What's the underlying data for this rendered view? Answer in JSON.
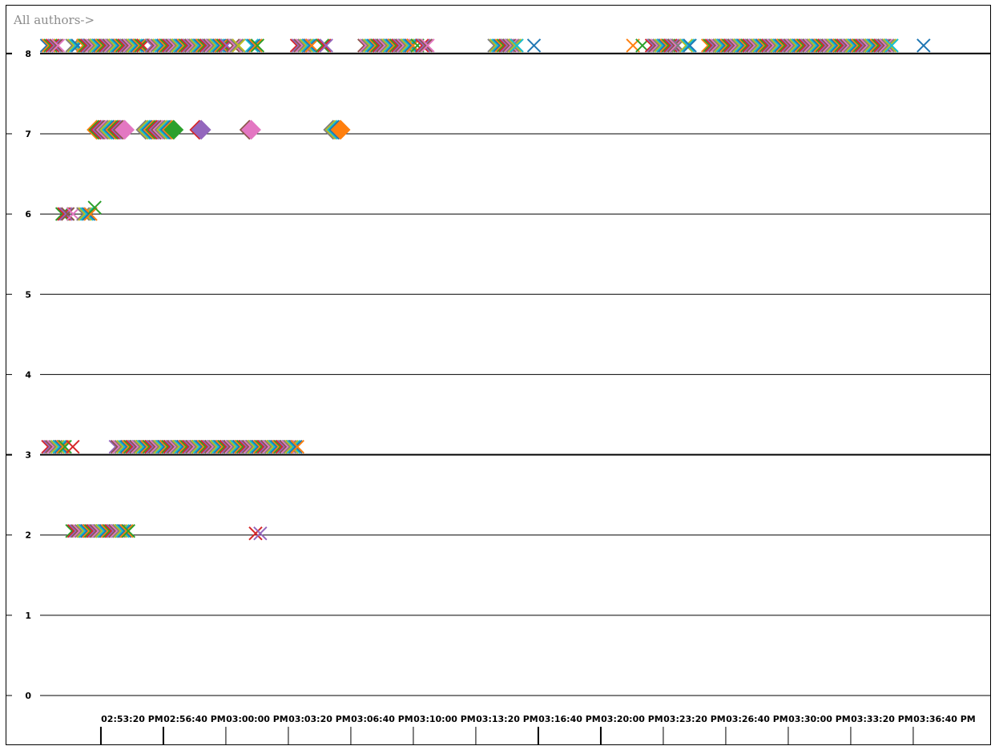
{
  "chart_data": {
    "type": "scatter",
    "title": "All authors->",
    "xlabel": "",
    "ylabel": "",
    "ylim": [
      0,
      8
    ],
    "yticks": [
      0,
      1,
      2,
      3,
      4,
      5,
      6,
      7,
      8
    ],
    "emphasized_y_gridlines": [
      3,
      8
    ],
    "grid": true,
    "x_axis_type": "time",
    "xlim": [
      "02:51:44 PM",
      "03:40:47 PM"
    ],
    "xtick_labels": [
      "02:53:20 PM",
      "02:56:40 PM",
      "03:00:00 PM",
      "03:03:20 PM",
      "03:06:40 PM",
      "03:10:00 PM",
      "03:13:20 PM",
      "03:16:40 PM",
      "03:20:00 PM",
      "03:23:20 PM",
      "03:26:40 PM",
      "03:30:00 PM",
      "03:33:20 PM",
      "03:36:40 PM"
    ],
    "xtick_seconds_after_start": [
      96,
      296,
      496,
      696,
      896,
      1096,
      1296,
      1496,
      1696,
      1896,
      2096,
      2296,
      2496,
      2696
    ],
    "major_xticks": [
      "02:53:20 PM",
      "02:56:40 PM",
      "03:16:40 PM",
      "03:20:00 PM"
    ],
    "marker_colors": [
      "#1f77b4",
      "#ff7f0e",
      "#2ca02c",
      "#d62728",
      "#9467bd",
      "#8c564b",
      "#e377c2",
      "#7f7f7f",
      "#bcbd22",
      "#17becf"
    ],
    "series": [
      {
        "marker": "x",
        "y": 8.1,
        "x": [
          "02:51:44 PM",
          "02:51:50 PM",
          "02:51:56 PM",
          "02:52:02 PM",
          "02:52:08 PM",
          "02:52:14 PM",
          "02:52:20 PM",
          "02:53:05 PM",
          "02:53:11 PM",
          "02:53:17 PM",
          "02:53:23 PM",
          "02:53:40 PM",
          "02:53:46 PM",
          "02:53:52 PM",
          "02:53:58 PM",
          "02:54:04 PM",
          "02:54:10 PM",
          "02:54:16 PM",
          "02:54:22 PM",
          "02:54:28 PM",
          "02:54:34 PM",
          "02:54:40 PM",
          "02:54:46 PM",
          "02:54:52 PM",
          "02:54:58 PM",
          "02:55:04 PM",
          "02:55:10 PM",
          "02:55:16 PM",
          "02:55:22 PM",
          "02:55:28 PM",
          "02:55:34 PM",
          "02:55:40 PM",
          "02:55:46 PM",
          "02:55:52 PM",
          "02:55:58 PM",
          "02:56:04 PM",
          "02:56:10 PM",
          "02:56:16 PM",
          "02:56:22 PM",
          "02:56:28 PM",
          "02:56:34 PM",
          "02:56:40 PM",
          "02:56:46 PM",
          "02:56:52 PM",
          "02:57:20 PM",
          "02:57:26 PM",
          "02:57:32 PM",
          "02:57:38 PM",
          "02:57:44 PM",
          "02:57:50 PM",
          "02:57:56 PM",
          "02:58:02 PM",
          "02:58:08 PM",
          "02:58:14 PM",
          "02:58:20 PM",
          "02:58:26 PM",
          "02:58:32 PM",
          "02:58:38 PM",
          "02:58:44 PM",
          "02:58:50 PM",
          "02:58:56 PM",
          "02:59:02 PM",
          "02:59:08 PM",
          "02:59:14 PM",
          "02:59:20 PM",
          "02:59:26 PM",
          "02:59:32 PM",
          "02:59:38 PM",
          "02:59:44 PM",
          "02:59:50 PM",
          "02:59:56 PM",
          "03:00:02 PM",
          "03:00:08 PM",
          "03:00:14 PM",
          "03:00:20 PM",
          "03:00:26 PM",
          "03:00:32 PM",
          "03:00:38 PM",
          "03:00:44 PM",
          "03:00:50 PM",
          "03:00:56 PM",
          "03:01:02 PM",
          "03:01:08 PM",
          "03:01:14 PM",
          "03:01:20 PM",
          "03:01:40 PM",
          "03:01:46 PM",
          "03:01:52 PM",
          "03:01:58 PM",
          "03:02:40 PM",
          "03:02:46 PM",
          "03:02:52 PM",
          "03:02:58 PM",
          "03:05:04 PM",
          "03:05:10 PM",
          "03:05:16 PM",
          "03:05:22 PM",
          "03:05:28 PM",
          "03:05:34 PM",
          "03:05:40 PM",
          "03:05:46 PM",
          "03:05:52 PM",
          "03:06:26 PM",
          "03:06:32 PM",
          "03:06:38 PM",
          "03:08:40 PM",
          "03:08:46 PM",
          "03:08:52 PM",
          "03:08:58 PM",
          "03:09:04 PM",
          "03:09:10 PM",
          "03:09:16 PM",
          "03:09:22 PM",
          "03:09:28 PM",
          "03:09:34 PM",
          "03:09:40 PM",
          "03:09:46 PM",
          "03:09:52 PM",
          "03:09:58 PM",
          "03:10:04 PM",
          "03:10:10 PM",
          "03:10:16 PM",
          "03:10:22 PM",
          "03:10:28 PM",
          "03:10:34 PM",
          "03:10:40 PM",
          "03:10:46 PM",
          "03:10:52 PM",
          "03:10:58 PM",
          "03:11:04 PM",
          "03:11:10 PM",
          "03:11:16 PM",
          "03:11:30 PM",
          "03:11:45 PM",
          "03:11:51 PM",
          "03:11:57 PM",
          "03:12:03 PM",
          "03:15:36 PM",
          "03:15:42 PM",
          "03:15:48 PM",
          "03:15:54 PM",
          "03:16:00 PM",
          "03:16:06 PM",
          "03:16:12 PM",
          "03:16:18 PM",
          "03:16:24 PM",
          "03:16:30 PM",
          "03:16:36 PM",
          "03:16:42 PM",
          "03:16:48 PM",
          "03:17:43 PM",
          "03:23:00 PM",
          "03:23:30 PM",
          "03:24:00 PM",
          "03:24:06 PM",
          "03:24:12 PM",
          "03:24:18 PM",
          "03:24:24 PM",
          "03:24:30 PM",
          "03:24:36 PM",
          "03:24:42 PM",
          "03:24:48 PM",
          "03:24:54 PM",
          "03:25:00 PM",
          "03:25:06 PM",
          "03:25:12 PM",
          "03:25:18 PM",
          "03:25:24 PM",
          "03:25:50 PM",
          "03:25:56 PM",
          "03:26:02 PM",
          "03:27:00 PM",
          "03:27:06 PM",
          "03:27:12 PM",
          "03:27:18 PM",
          "03:27:24 PM",
          "03:27:30 PM",
          "03:27:36 PM",
          "03:27:42 PM",
          "03:27:48 PM",
          "03:27:54 PM",
          "03:28:00 PM",
          "03:28:06 PM",
          "03:28:12 PM",
          "03:28:18 PM",
          "03:28:24 PM",
          "03:28:30 PM",
          "03:28:36 PM",
          "03:28:42 PM",
          "03:28:48 PM",
          "03:28:54 PM",
          "03:29:00 PM",
          "03:29:06 PM",
          "03:29:12 PM",
          "03:29:18 PM",
          "03:29:24 PM",
          "03:29:30 PM",
          "03:29:36 PM",
          "03:29:42 PM",
          "03:29:48 PM",
          "03:29:54 PM",
          "03:30:00 PM",
          "03:30:06 PM",
          "03:30:12 PM",
          "03:30:18 PM",
          "03:30:24 PM",
          "03:30:30 PM",
          "03:30:36 PM",
          "03:30:42 PM",
          "03:30:48 PM",
          "03:30:54 PM",
          "03:31:00 PM",
          "03:31:06 PM",
          "03:31:12 PM",
          "03:31:18 PM",
          "03:31:24 PM",
          "03:31:30 PM",
          "03:31:36 PM",
          "03:31:42 PM",
          "03:31:48 PM",
          "03:31:54 PM",
          "03:32:00 PM",
          "03:32:06 PM",
          "03:32:12 PM",
          "03:32:18 PM",
          "03:32:24 PM",
          "03:32:30 PM",
          "03:32:36 PM",
          "03:32:42 PM",
          "03:32:48 PM",
          "03:32:54 PM",
          "03:33:00 PM",
          "03:33:06 PM",
          "03:33:12 PM",
          "03:33:18 PM",
          "03:33:24 PM",
          "03:33:30 PM",
          "03:33:36 PM",
          "03:33:42 PM",
          "03:33:48 PM",
          "03:33:54 PM",
          "03:34:00 PM",
          "03:34:06 PM",
          "03:34:12 PM",
          "03:34:18 PM",
          "03:34:24 PM",
          "03:34:30 PM",
          "03:34:36 PM",
          "03:34:42 PM",
          "03:34:48 PM",
          "03:34:54 PM",
          "03:35:00 PM",
          "03:35:06 PM",
          "03:35:12 PM",
          "03:35:18 PM",
          "03:35:24 PM",
          "03:35:30 PM",
          "03:35:36 PM",
          "03:35:42 PM",
          "03:35:48 PM",
          "03:35:54 PM",
          "03:36:00 PM",
          "03:36:06 PM",
          "03:36:12 PM",
          "03:36:18 PM",
          "03:36:24 PM",
          "03:36:30 PM",
          "03:36:36 PM",
          "03:36:42 PM",
          "03:36:48 PM",
          "03:38:30 PM"
        ]
      },
      {
        "marker": "diamond",
        "y": 7.05,
        "x": [
          "02:54:23 PM",
          "02:54:29 PM",
          "02:54:35 PM",
          "02:54:41 PM",
          "02:54:47 PM",
          "02:54:53 PM",
          "02:54:59 PM",
          "02:55:05 PM",
          "02:55:11 PM",
          "02:55:17 PM",
          "02:55:23 PM",
          "02:55:29 PM",
          "02:55:35 PM",
          "02:55:41 PM",
          "02:55:47 PM",
          "02:55:53 PM",
          "02:57:00 PM",
          "02:57:06 PM",
          "02:57:12 PM",
          "02:57:18 PM",
          "02:57:24 PM",
          "02:57:30 PM",
          "02:57:36 PM",
          "02:57:42 PM",
          "02:57:48 PM",
          "02:57:54 PM",
          "02:58:00 PM",
          "02:58:06 PM",
          "02:58:12 PM",
          "02:58:18 PM",
          "02:58:24 PM",
          "02:58:30 PM",
          "02:59:52 PM",
          "02:59:58 PM",
          "03:02:32 PM",
          "03:02:38 PM",
          "03:07:00 PM",
          "03:07:06 PM",
          "03:07:12 PM",
          "03:07:18 PM",
          "03:07:24 PM"
        ]
      },
      {
        "marker": "x",
        "y": 6.0,
        "x": [
          "02:52:33 PM",
          "02:52:39 PM",
          "02:52:45 PM",
          "02:52:51 PM",
          "02:53:08 PM",
          "02:53:40 PM",
          "02:53:46 PM",
          "02:53:52 PM",
          "02:53:58 PM",
          "02:54:04 PM"
        ]
      },
      {
        "marker": "x",
        "y": 6.08,
        "x": [
          "02:54:17 PM"
        ]
      },
      {
        "marker": "x",
        "y": 3.1,
        "x": [
          "02:51:48 PM",
          "02:51:54 PM",
          "02:52:00 PM",
          "02:52:06 PM",
          "02:52:12 PM",
          "02:52:18 PM",
          "02:52:24 PM",
          "02:52:30 PM",
          "02:52:36 PM",
          "02:52:42 PM",
          "02:53:07 PM",
          "02:55:24 PM",
          "02:55:30 PM",
          "02:55:36 PM",
          "02:55:42 PM",
          "02:55:48 PM",
          "02:55:54 PM",
          "02:56:00 PM",
          "02:56:06 PM",
          "02:56:12 PM",
          "02:56:18 PM",
          "02:56:24 PM",
          "02:56:30 PM",
          "02:56:36 PM",
          "02:56:42 PM",
          "02:56:48 PM",
          "02:56:54 PM",
          "02:57:00 PM",
          "02:57:06 PM",
          "02:57:12 PM",
          "02:57:18 PM",
          "02:57:24 PM",
          "02:57:30 PM",
          "02:57:36 PM",
          "02:57:42 PM",
          "02:57:48 PM",
          "02:57:54 PM",
          "02:58:00 PM",
          "02:58:06 PM",
          "02:58:12 PM",
          "02:58:18 PM",
          "02:58:24 PM",
          "02:58:30 PM",
          "02:58:36 PM",
          "02:58:42 PM",
          "02:58:48 PM",
          "02:58:54 PM",
          "02:59:00 PM",
          "02:59:06 PM",
          "02:59:12 PM",
          "02:59:18 PM",
          "02:59:24 PM",
          "02:59:30 PM",
          "02:59:36 PM",
          "02:59:42 PM",
          "02:59:48 PM",
          "02:59:54 PM",
          "03:00:00 PM",
          "03:00:06 PM",
          "03:00:12 PM",
          "03:00:18 PM",
          "03:00:24 PM",
          "03:00:30 PM",
          "03:00:36 PM",
          "03:00:42 PM",
          "03:00:48 PM",
          "03:00:54 PM",
          "03:01:00 PM",
          "03:01:06 PM",
          "03:01:12 PM",
          "03:01:18 PM",
          "03:01:24 PM",
          "03:01:30 PM",
          "03:01:36 PM",
          "03:01:42 PM",
          "03:01:48 PM",
          "03:01:54 PM",
          "03:02:00 PM",
          "03:02:06 PM",
          "03:02:12 PM",
          "03:02:18 PM",
          "03:02:24 PM",
          "03:02:30 PM",
          "03:02:36 PM",
          "03:02:42 PM",
          "03:02:48 PM",
          "03:02:54 PM",
          "03:03:00 PM",
          "03:03:06 PM",
          "03:03:12 PM",
          "03:03:18 PM",
          "03:03:24 PM",
          "03:03:30 PM",
          "03:03:36 PM",
          "03:03:42 PM",
          "03:03:48 PM",
          "03:03:54 PM",
          "03:04:00 PM",
          "03:04:06 PM",
          "03:04:12 PM",
          "03:04:18 PM",
          "03:04:24 PM",
          "03:04:30 PM",
          "03:04:36 PM",
          "03:04:42 PM",
          "03:04:48 PM",
          "03:04:54 PM",
          "03:05:00 PM",
          "03:05:06 PM"
        ]
      },
      {
        "marker": "x",
        "y": 2.05,
        "x": [
          "02:53:05 PM",
          "02:53:11 PM",
          "02:53:17 PM",
          "02:53:23 PM",
          "02:53:29 PM",
          "02:53:35 PM",
          "02:53:41 PM",
          "02:53:47 PM",
          "02:53:53 PM",
          "02:53:59 PM",
          "02:54:05 PM",
          "02:54:11 PM",
          "02:54:17 PM",
          "02:54:23 PM",
          "02:54:29 PM",
          "02:54:35 PM",
          "02:54:41 PM",
          "02:54:47 PM",
          "02:54:53 PM",
          "02:54:59 PM",
          "02:55:05 PM",
          "02:55:11 PM",
          "02:55:17 PM",
          "02:55:23 PM",
          "02:55:29 PM",
          "02:55:35 PM",
          "02:55:41 PM",
          "02:55:47 PM",
          "02:55:53 PM",
          "02:55:59 PM",
          "02:56:05 PM"
        ]
      },
      {
        "marker": "x",
        "y": 2.02,
        "x": [
          "03:02:52 PM",
          "03:03:07 PM"
        ]
      }
    ]
  }
}
